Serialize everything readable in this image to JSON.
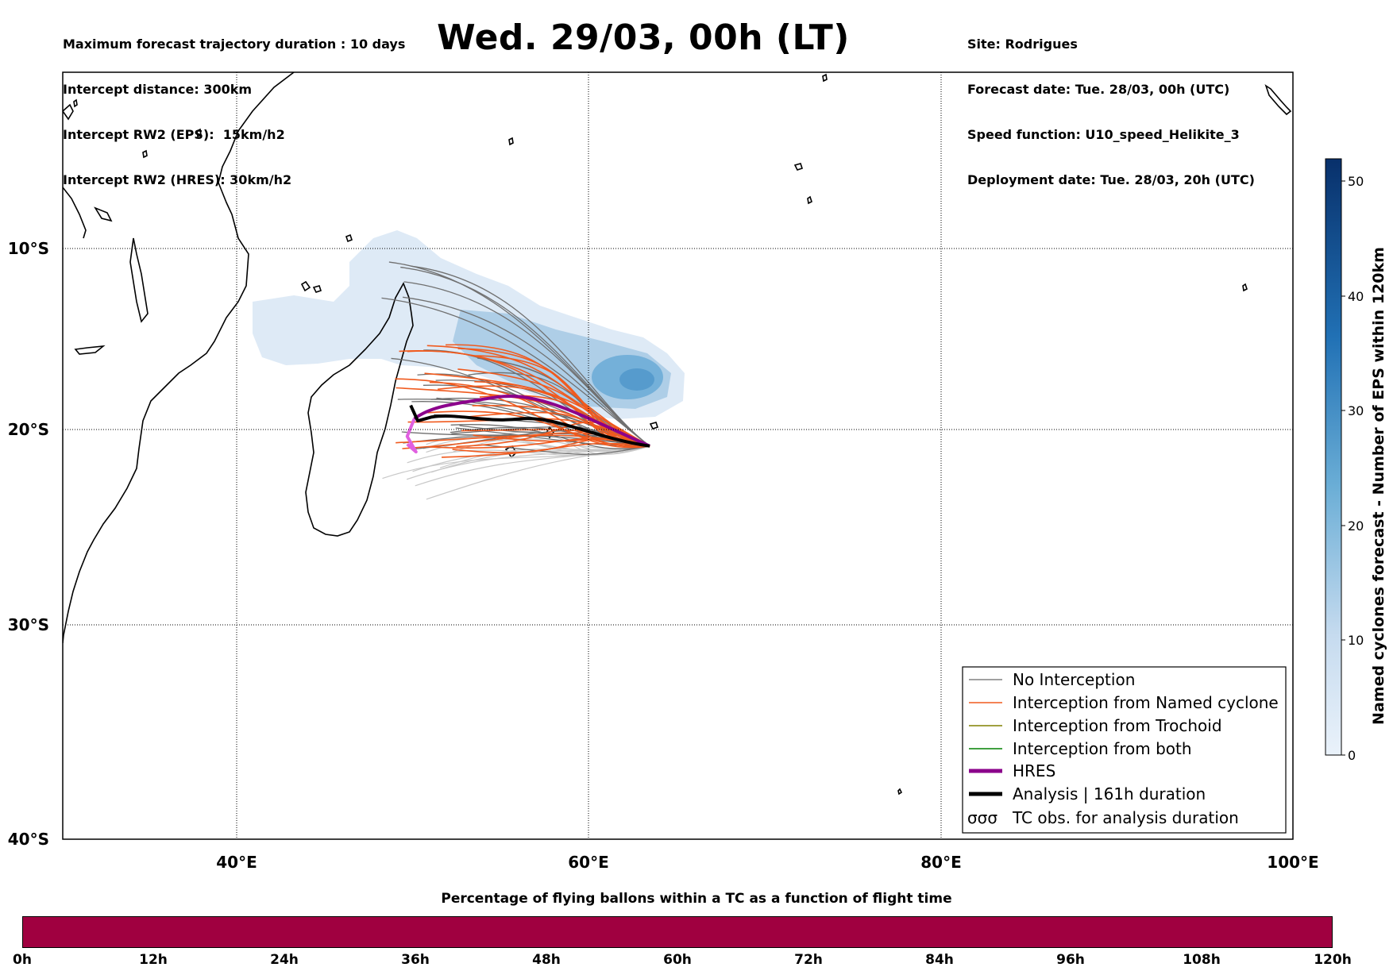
{
  "header": {
    "title": "Wed. 29/03, 00h (LT)",
    "left_lines": [
      "Maximum forecast trajectory duration : 10 days",
      "Intercept distance: 300km",
      "Intercept RW2 (EPS):  15km/h2",
      "Intercept RW2 (HRES): 30km/h2"
    ],
    "right_lines": [
      "Site: Rodrigues",
      "Forecast date: Tue. 28/03, 00h (UTC)",
      "Speed function: U10_speed_Helikite_3",
      "Deployment date: Tue. 28/03, 20h (UTC)"
    ]
  },
  "map": {
    "lon_range": [
      30,
      100
    ],
    "lat_range": [
      -40,
      -0.4
    ],
    "lon_ticks": [
      "40°E",
      "60°E",
      "80°E",
      "100°E"
    ],
    "lat_ticks": [
      "10°S",
      "20°S",
      "30°S",
      "40°S"
    ],
    "grid": "dotted",
    "release_site": {
      "name": "Rodrigues",
      "lon": 63.4,
      "lat": -19.7
    }
  },
  "colorbar": {
    "label": "Named cyclones forecast - Number of EPS within 120km",
    "range": [
      0,
      52
    ],
    "ticks": [
      "0",
      "10",
      "20",
      "30",
      "40",
      "50"
    ],
    "colors": [
      "#eaf2fa",
      "#08306b"
    ]
  },
  "legend": {
    "placement": "bottom-right",
    "items": [
      {
        "label": "No Interception",
        "color": "#808080",
        "style": "thin"
      },
      {
        "label": "Interception from Named cyclone",
        "color": "#f05a1e",
        "style": "thin"
      },
      {
        "label": "Interception from Trochoid",
        "color": "#808000",
        "style": "thin"
      },
      {
        "label": "Interception from both",
        "color": "#008000",
        "style": "thin"
      },
      {
        "label": "HRES",
        "color": "#8b008b",
        "style": "thick"
      },
      {
        "label": "Analysis | 161h duration",
        "color": "#000000",
        "style": "thick"
      },
      {
        "label": "TC obs. for analysis duration",
        "color": "#000000",
        "style": "symbol",
        "symbol": "σσσ"
      }
    ]
  },
  "timebar": {
    "title": "Percentage of flying ballons within a TC as a function of flight time",
    "color": "#a00040",
    "ticks": [
      "0h",
      "12h",
      "24h",
      "36h",
      "48h",
      "60h",
      "72h",
      "84h",
      "96h",
      "108h",
      "120h"
    ]
  }
}
